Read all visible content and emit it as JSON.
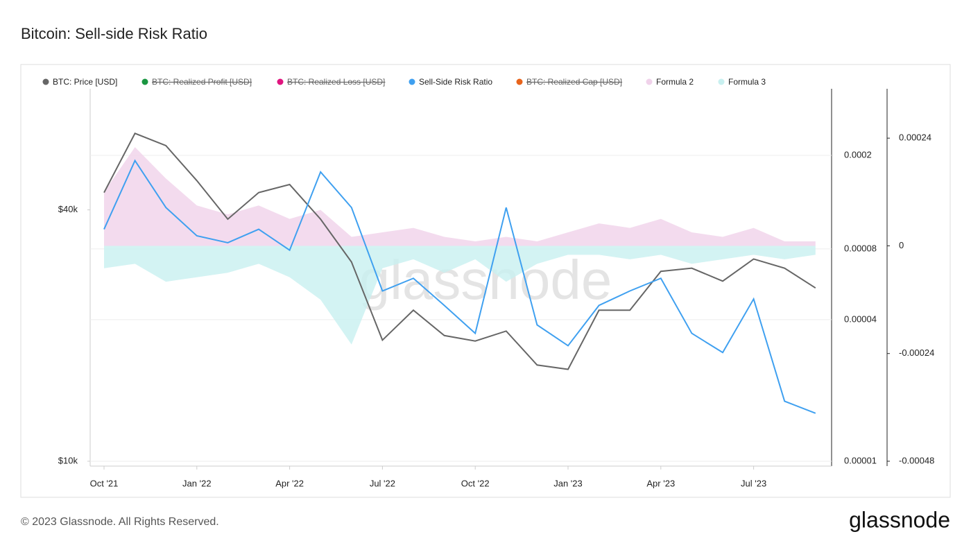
{
  "chart_data": {
    "type": "line",
    "title": "Bitcoin: Sell-side Risk Ratio",
    "watermark": "glassnode",
    "footer": "© 2023 Glassnode. All Rights Reserved.",
    "logo": "glassnode",
    "x": [
      "2021-10",
      "2021-11",
      "2021-12",
      "2022-01",
      "2022-02",
      "2022-03",
      "2022-04",
      "2022-05",
      "2022-06",
      "2022-07",
      "2022-08",
      "2022-09",
      "2022-10",
      "2022-11",
      "2022-12",
      "2023-01",
      "2023-02",
      "2023-03",
      "2023-04",
      "2023-05",
      "2023-06",
      "2023-07",
      "2023-08",
      "2023-09"
    ],
    "xticks": [
      {
        "value": "2021-10",
        "label": "Oct '21"
      },
      {
        "value": "2022-01",
        "label": "Jan '22"
      },
      {
        "value": "2022-04",
        "label": "Apr '22"
      },
      {
        "value": "2022-07",
        "label": "Jul '22"
      },
      {
        "value": "2022-10",
        "label": "Oct '22"
      },
      {
        "value": "2023-01",
        "label": "Jan '23"
      },
      {
        "value": "2023-04",
        "label": "Apr '23"
      },
      {
        "value": "2023-07",
        "label": "Jul '23"
      }
    ],
    "log_scale": true,
    "grid": true,
    "ylim": [
      10000,
      78000
    ],
    "yticks": [
      {
        "value": 10000,
        "label": "$10k"
      },
      {
        "value": 40000,
        "label": "$40k"
      }
    ],
    "y2lim": [
      1e-05,
      0.000384
    ],
    "y2ticks": [
      1e-05,
      4e-05,
      8e-05,
      0.0002
    ],
    "y3lim": [
      -0.00048,
      0.00035
    ],
    "y3ticks": [
      -0.00048,
      -0.00024,
      0,
      0.00024
    ],
    "series": [
      {
        "name": "BTC: Price [USD]",
        "color": "#666666",
        "axis": "y",
        "values": [
          44000,
          61000,
          57000,
          47000,
          38000,
          44000,
          46000,
          38000,
          30000,
          19500,
          23000,
          20000,
          19400,
          20500,
          17000,
          16600,
          23000,
          23000,
          28500,
          29000,
          27000,
          30500,
          29000,
          26000
        ]
      },
      {
        "name": "BTC: Realized Profit [USD]",
        "color": "#1a9641",
        "hidden": true
      },
      {
        "name": "BTC: Realized Loss [USD]",
        "color": "#e0157f",
        "hidden": true
      },
      {
        "name": "Sell-Side Risk Ratio",
        "color": "#3fa0f0",
        "axis": "y2",
        "values": [
          9.7e-05,
          0.00019,
          0.00012,
          9.1e-05,
          8.5e-05,
          9.7e-05,
          7.9e-05,
          0.00017,
          0.00012,
          5.3e-05,
          6e-05,
          4.6e-05,
          3.5e-05,
          0.00012,
          3.8e-05,
          3.1e-05,
          4.6e-05,
          5.3e-05,
          6e-05,
          3.5e-05,
          2.9e-05,
          4.9e-05,
          1.8e-05,
          1.6e-05
        ]
      },
      {
        "name": "BTC: Realized Cap [USD]",
        "color": "#e8641b",
        "hidden": true
      },
      {
        "name": "Formula 2",
        "color": "#f0d2ea",
        "axis": "y3",
        "values": [
          0.00012,
          0.00022,
          0.00015,
          9e-05,
          7e-05,
          9e-05,
          6e-05,
          8e-05,
          2e-05,
          3e-05,
          4e-05,
          2e-05,
          1e-05,
          2e-05,
          1e-05,
          3e-05,
          5e-05,
          4e-05,
          6e-05,
          3e-05,
          2e-05,
          4e-05,
          1e-05,
          1e-05
        ]
      },
      {
        "name": "Formula 3",
        "color": "#c8f0f0",
        "axis": "y3",
        "values": [
          -5e-05,
          -4e-05,
          -8e-05,
          -7e-05,
          -6e-05,
          -4e-05,
          -7e-05,
          -0.00012,
          -0.00022,
          -5e-05,
          -3e-05,
          -6e-05,
          -3e-05,
          -8e-05,
          -4e-05,
          -2e-05,
          -2e-05,
          -3e-05,
          -2e-05,
          -4e-05,
          -3e-05,
          -2e-05,
          -3e-05,
          -2e-05
        ]
      }
    ]
  }
}
